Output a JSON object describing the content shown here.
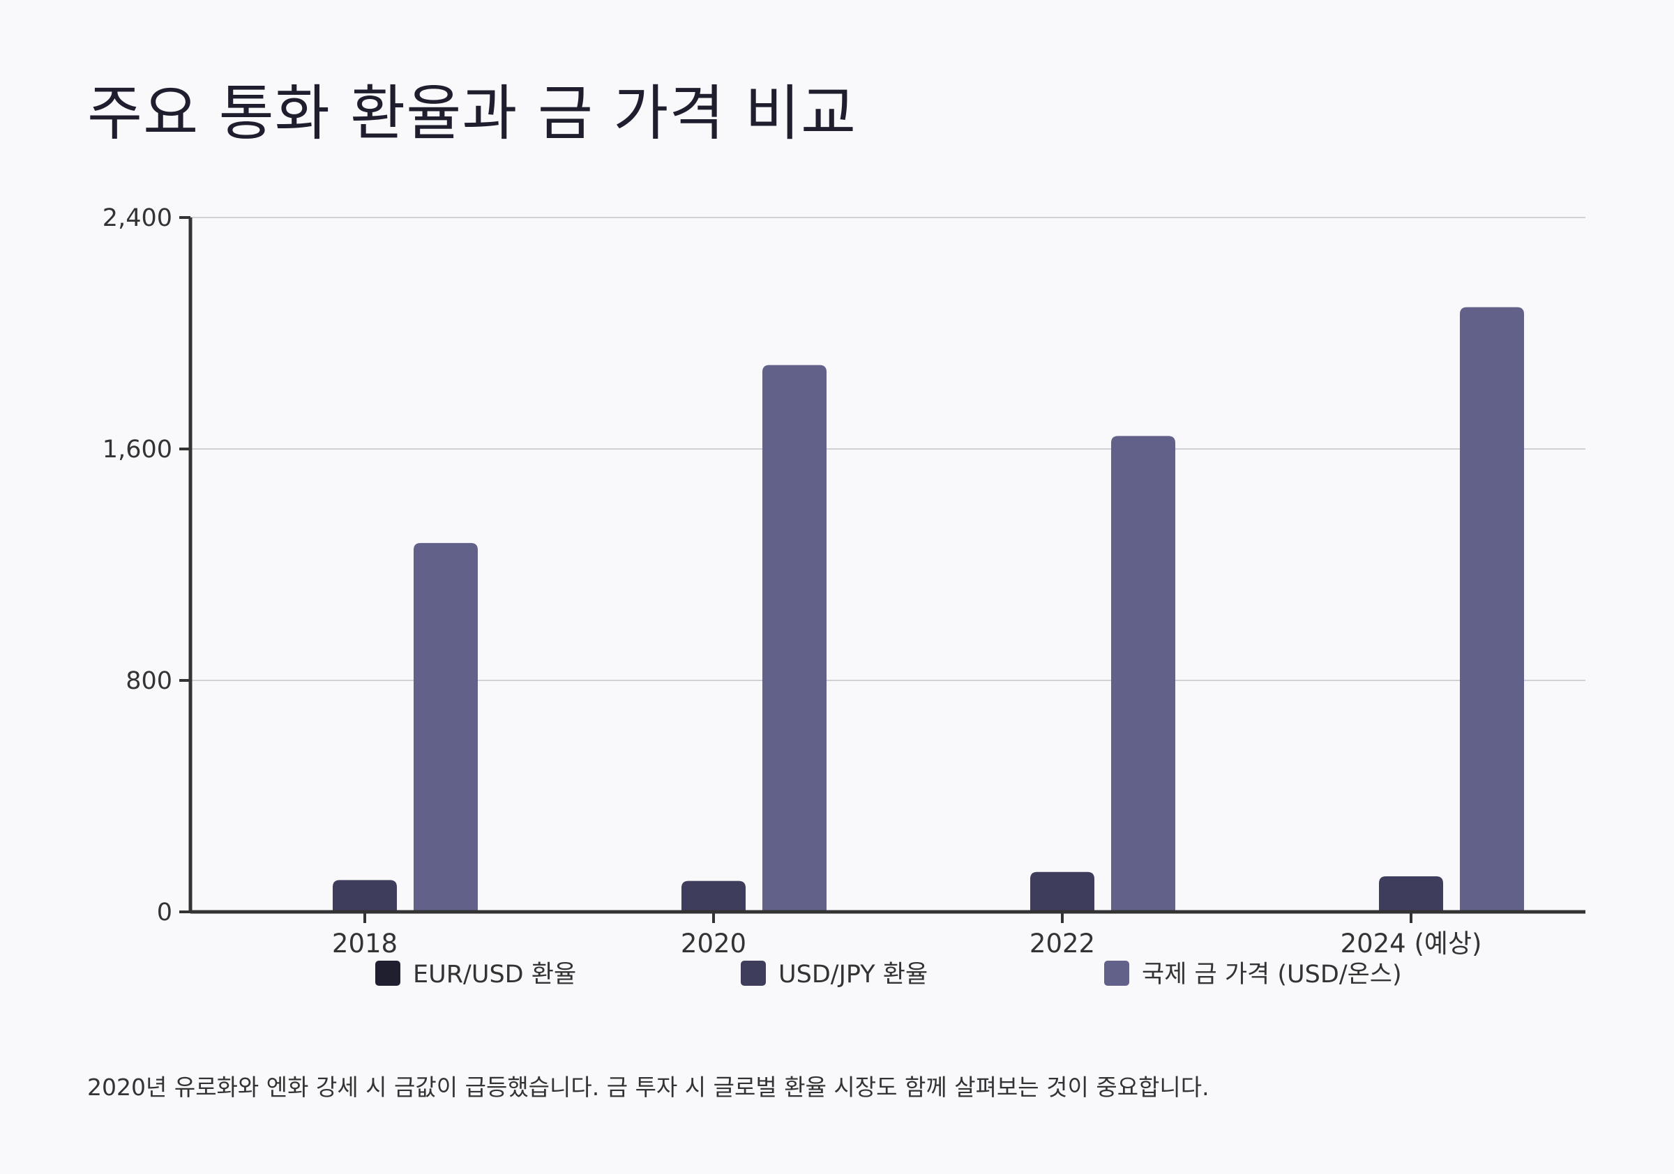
{
  "title": "주요 통화 환율과 금 가격 비교",
  "note": "2020년 유로화와 엔화 강세 시 금값이 급등했습니다. 금 투자 시 글로벌 환율 시장도 함께 살펴보는 것이 중요합니다.",
  "colors": {
    "background": "#f9f9fb",
    "axis": "#333333",
    "grid": "#d0d0d6",
    "series": [
      "#1f1f30",
      "#3e3e5c",
      "#616189"
    ]
  },
  "chart_data": {
    "type": "bar",
    "title": "주요 통화 환율과 금 가격 비교",
    "categories": [
      "2018",
      "2020",
      "2022",
      "2024 (예상)"
    ],
    "series": [
      {
        "name": "EUR/USD 환율",
        "values": [
          1.18,
          1.14,
          1.05,
          1.08
        ]
      },
      {
        "name": "USD/JPY 환율",
        "values": [
          110,
          107,
          138,
          123
        ]
      },
      {
        "name": "국제 금 가격 (USD/온스)",
        "values": [
          1275,
          1890,
          1645,
          2090
        ]
      }
    ],
    "ylim": [
      0,
      2400
    ],
    "yticks": [
      "0",
      "800",
      "1,600",
      "2,400"
    ],
    "ytick_values": [
      0,
      800,
      1600,
      2400
    ],
    "grid": true,
    "legend": "bottom"
  }
}
